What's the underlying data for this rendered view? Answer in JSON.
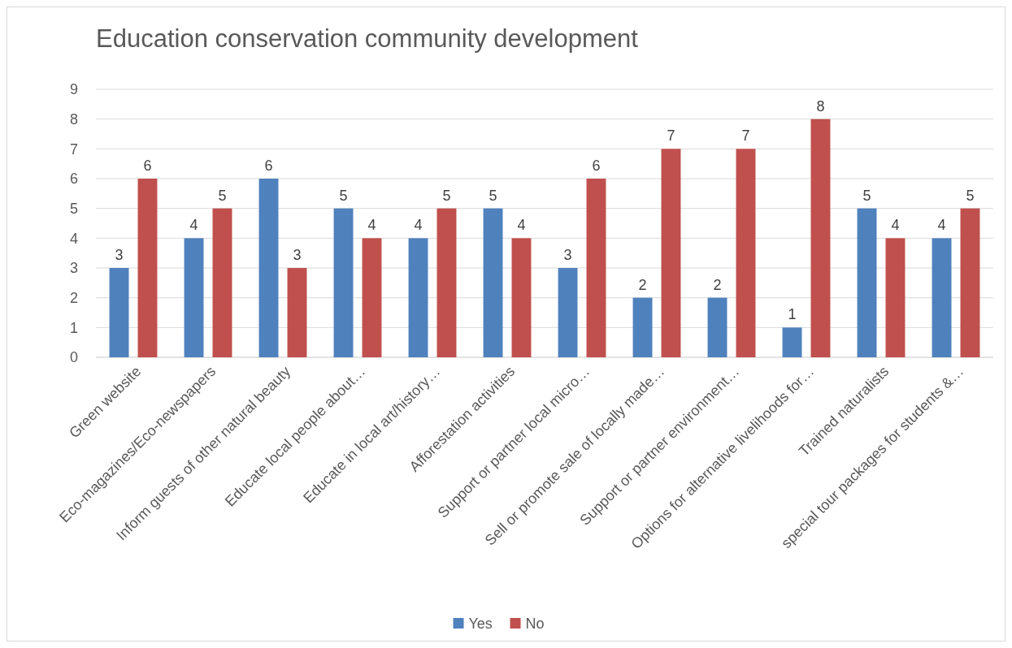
{
  "chart_data": {
    "type": "bar",
    "title": "Education conservation community development",
    "categories": [
      "Green website",
      "Eco-magazines/Eco-newspapers",
      "Inform guests of other natural beauty",
      "Educate local people about…",
      "Educate in local art/history…",
      "Afforestation activities",
      "Support or partner local micro…",
      "Sell or promote sale of locally made…",
      "Support or partner environment…",
      "Options for alternative livelihoods for…",
      "Trained naturalists",
      "special tour packages for students &…"
    ],
    "series": [
      {
        "name": "Yes",
        "color": "#4f81bd",
        "values": [
          3,
          4,
          6,
          5,
          4,
          5,
          3,
          2,
          2,
          1,
          5,
          4
        ]
      },
      {
        "name": "No",
        "color": "#c0504d",
        "values": [
          6,
          5,
          3,
          4,
          5,
          4,
          6,
          7,
          7,
          8,
          4,
          5
        ]
      }
    ],
    "ylim": [
      0,
      9
    ],
    "yticks": [
      0,
      1,
      2,
      3,
      4,
      5,
      6,
      7,
      8,
      9
    ],
    "grid": "y",
    "data_labels": true,
    "legend": "bottom"
  }
}
